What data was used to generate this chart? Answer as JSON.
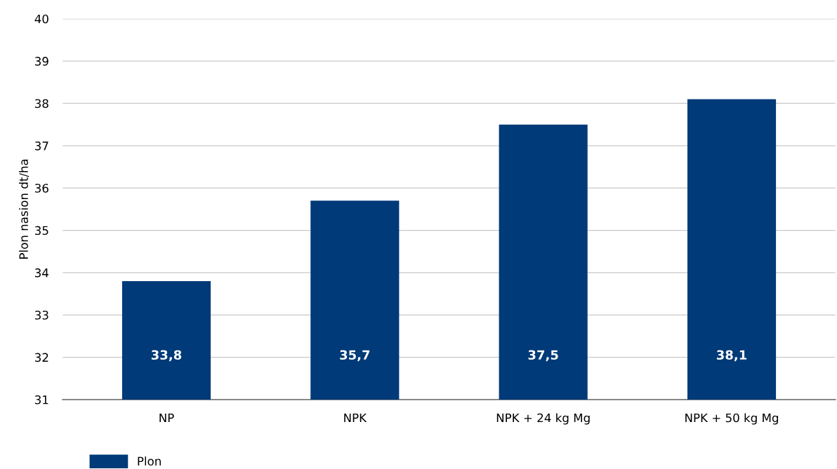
{
  "chart_data": {
    "type": "bar",
    "ylabel": "Plon nasion dt/ha",
    "categories": [
      "NP",
      "NPK",
      "NPK + 24 kg Mg",
      "NPK + 50 kg Mg"
    ],
    "series": [
      {
        "name": "Plon",
        "color": "#003a78",
        "values": [
          33.8,
          35.7,
          37.5,
          38.1
        ],
        "value_labels": [
          "33,8",
          "35,7",
          "37,5",
          "38,1"
        ]
      }
    ],
    "ylim": [
      31,
      40
    ],
    "yticks": [
      31,
      32,
      33,
      34,
      35,
      36,
      37,
      38,
      39,
      40
    ],
    "grid": "y",
    "legend": "bottom left"
  }
}
